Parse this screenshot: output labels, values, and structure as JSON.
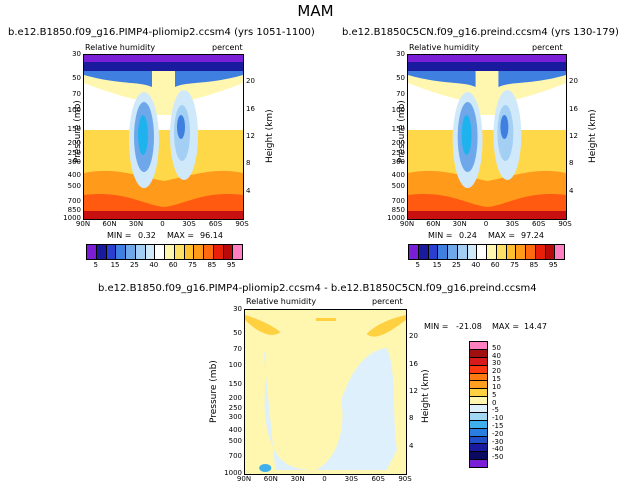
{
  "title": "MAM",
  "chart_data": [
    {
      "type": "heatmap",
      "title": "b.e12.B1850.f09_g16.PIMP4-pliomip2.ccsm4 (yrs 1051-1100)",
      "left_label": "Relative humidity",
      "right_label": "percent",
      "ylabel": "Pressure (mb)",
      "y2label": "Height (km)",
      "x_ticks": [
        "90N",
        "60N",
        "30N",
        "0",
        "30S",
        "60S",
        "90S"
      ],
      "y_ticks": [
        "1000",
        "850",
        "700",
        "500",
        "400",
        "300",
        "250",
        "200",
        "150",
        "100",
        "70",
        "50",
        "30"
      ],
      "y2_ticks": [
        "20",
        "16",
        "12",
        "8",
        "4"
      ],
      "min": "0.32",
      "max": "96.14",
      "min_label": "MIN =",
      "max_label": "MAX ="
    },
    {
      "type": "heatmap",
      "title": "b.e12.B1850C5CN.f09_g16.preind.ccsm4 (yrs 130-179)",
      "left_label": "Relative humidity",
      "right_label": "percent",
      "ylabel": "Pressure (mb)",
      "y2label": "Height (km)",
      "x_ticks": [
        "90N",
        "60N",
        "30N",
        "0",
        "30S",
        "60S",
        "90S"
      ],
      "y_ticks": [
        "1000",
        "850",
        "700",
        "500",
        "400",
        "300",
        "250",
        "200",
        "150",
        "100",
        "70",
        "50",
        "30"
      ],
      "y2_ticks": [
        "20",
        "16",
        "12",
        "8",
        "4"
      ],
      "min": "0.24",
      "max": "97.24",
      "min_label": "MIN =",
      "max_label": "MAX ="
    },
    {
      "type": "heatmap",
      "title": "b.e12.B1850.f09_g16.PIMP4-pliomip2.ccsm4 - b.e12.B1850C5CN.f09_g16.preind.ccsm4",
      "left_label": "Relative humidity",
      "right_label": "percent",
      "ylabel": "Pressure (mb)",
      "y2label": "Height (km)",
      "x_ticks": [
        "90N",
        "60N",
        "30N",
        "0",
        "30S",
        "60S",
        "90S"
      ],
      "y_ticks": [
        "1000",
        "700",
        "500",
        "400",
        "300",
        "250",
        "200",
        "150",
        "100",
        "70",
        "50",
        "30"
      ],
      "y2_ticks": [
        "20",
        "16",
        "12",
        "8",
        "4"
      ],
      "min": "-21.08",
      "max": "14.47",
      "min_label": "MIN =",
      "max_label": "MAX ="
    }
  ],
  "colorbar_abs": {
    "labels": [
      "5",
      "15",
      "25",
      "40",
      "60",
      "75",
      "85",
      "95"
    ],
    "colors": [
      "#7a1fd6",
      "#1a1a9e",
      "#2a3fd0",
      "#3f7fe0",
      "#6fa8ea",
      "#a3cff5",
      "#cfe9fb",
      "#ffffff",
      "#fff7b0",
      "#ffe066",
      "#ffc030",
      "#ff9a1a",
      "#ff6a10",
      "#e8200a",
      "#b80a0a",
      "#ff80c0"
    ]
  },
  "colorbar_diff": {
    "labels": [
      "50",
      "40",
      "30",
      "20",
      "15",
      "10",
      "5",
      "0",
      "-5",
      "-10",
      "-15",
      "-20",
      "-30",
      "-40",
      "-50"
    ],
    "colors": [
      "#ff80c0",
      "#a01010",
      "#d81a1a",
      "#ff3a10",
      "#ff7a10",
      "#ffa020",
      "#ffd040",
      "#fff7b0",
      "#ddf0fb",
      "#a3d8f5",
      "#3fb0ec",
      "#2a7ee0",
      "#2050c8",
      "#1a1a9e",
      "#0a0a60",
      "#7a1fd6"
    ]
  }
}
